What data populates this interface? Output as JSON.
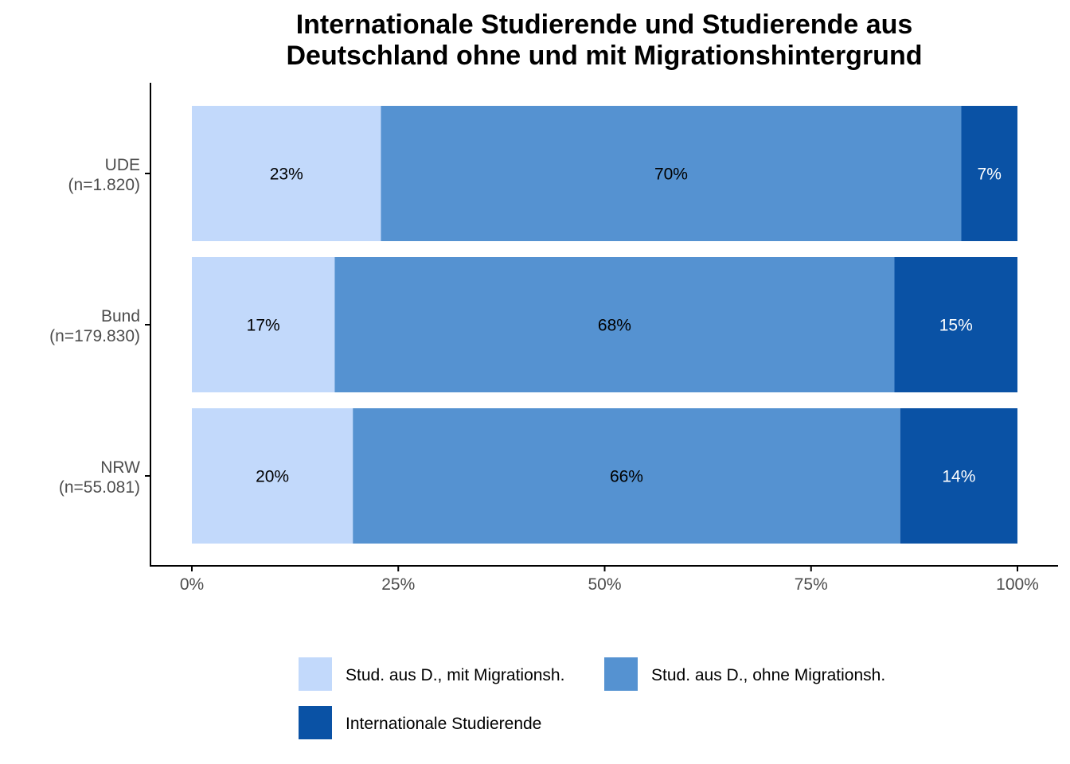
{
  "chart_data": {
    "type": "bar",
    "orientation": "horizontal",
    "stacked": true,
    "title": "Internationale Studierende und Studierende aus Deutschland ohne und mit Migrationshintergrund",
    "title_lines": [
      "Internationale Studierende und Studierende aus",
      "Deutschland ohne und mit Migrationshintergrund"
    ],
    "categories": [
      {
        "name": "UDE",
        "n": "(n=1.820)"
      },
      {
        "name": "Bund",
        "n": "(n=179.830)"
      },
      {
        "name": "NRW",
        "n": "(n=55.081)"
      }
    ],
    "series": [
      {
        "name": "Stud. aus D., mit Migrationsh.",
        "color": "#c2d9fb",
        "label_color": "#000000",
        "values": [
          22.9,
          17.3,
          19.5
        ],
        "labels": [
          "23%",
          "17%",
          "20%"
        ]
      },
      {
        "name": "Stud. aus D., ohne Migrationsh.",
        "color": "#5592d1",
        "label_color": "#000000",
        "values": [
          70.3,
          67.8,
          66.3
        ],
        "labels": [
          "70%",
          "68%",
          "66%"
        ]
      },
      {
        "name": "Internationale Studierende",
        "color": "#0a52a5",
        "label_color": "#ffffff",
        "values": [
          6.8,
          14.9,
          14.2
        ],
        "labels": [
          "7%",
          "15%",
          "14%"
        ]
      }
    ],
    "x_ticks": [
      0,
      25,
      50,
      75,
      100
    ],
    "x_tick_labels": [
      "0%",
      "25%",
      "50%",
      "75%",
      "100%"
    ],
    "xlim": [
      0,
      100
    ],
    "xlabel": "",
    "ylabel": "",
    "grid": false,
    "legend_position": "bottom"
  }
}
